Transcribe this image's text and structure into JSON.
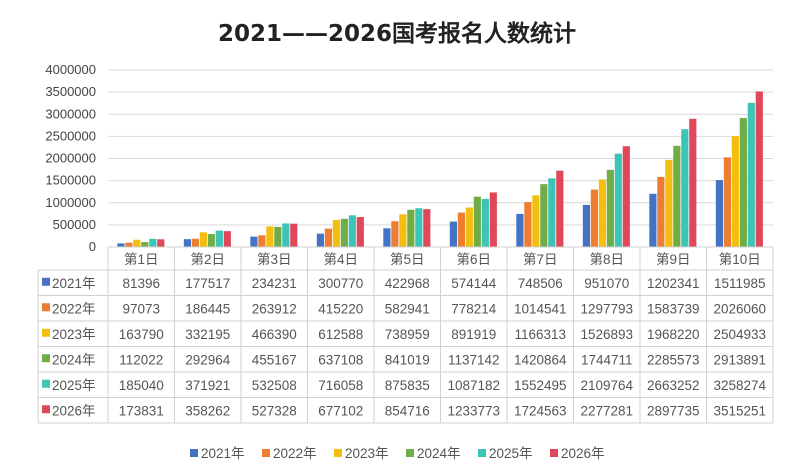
{
  "chart_data": {
    "type": "bar",
    "title": "2021——2026国考报名人数统计",
    "categories": [
      "第1日",
      "第2日",
      "第3日",
      "第4日",
      "第5日",
      "第6日",
      "第7日",
      "第8日",
      "第9日",
      "第10日"
    ],
    "ylim": [
      0,
      4000000
    ],
    "yticks": [
      0,
      500000,
      1000000,
      1500000,
      2000000,
      2500000,
      3000000,
      3500000,
      4000000
    ],
    "grid": true,
    "legend_position": "bottom",
    "data_table": true,
    "series": [
      {
        "name": "2021年",
        "color": "#4472C4",
        "values": [
          81396,
          177517,
          234231,
          300770,
          422968,
          574144,
          748506,
          951070,
          1202341,
          1511985
        ]
      },
      {
        "name": "2022年",
        "color": "#ED7D31",
        "values": [
          97073,
          186445,
          263912,
          415220,
          582941,
          778214,
          1014541,
          1297793,
          1583739,
          2026060
        ]
      },
      {
        "name": "2023年",
        "color": "#F2BE0F",
        "values": [
          163790,
          332195,
          466390,
          612588,
          738959,
          891919,
          1166313,
          1526893,
          1968220,
          2504933
        ]
      },
      {
        "name": "2024年",
        "color": "#70AD47",
        "values": [
          112022,
          292964,
          455167,
          637108,
          841019,
          1137142,
          1420864,
          1744711,
          2285573,
          2913891
        ]
      },
      {
        "name": "2025年",
        "color": "#3EC4B6",
        "values": [
          185040,
          371921,
          532508,
          716058,
          875835,
          1087182,
          1552495,
          2109764,
          2663252,
          3258274
        ]
      },
      {
        "name": "2026年",
        "color": "#E0475B",
        "values": [
          173831,
          358262,
          527328,
          677102,
          854716,
          1233773,
          1724563,
          2277281,
          2897735,
          3515251
        ]
      }
    ]
  }
}
